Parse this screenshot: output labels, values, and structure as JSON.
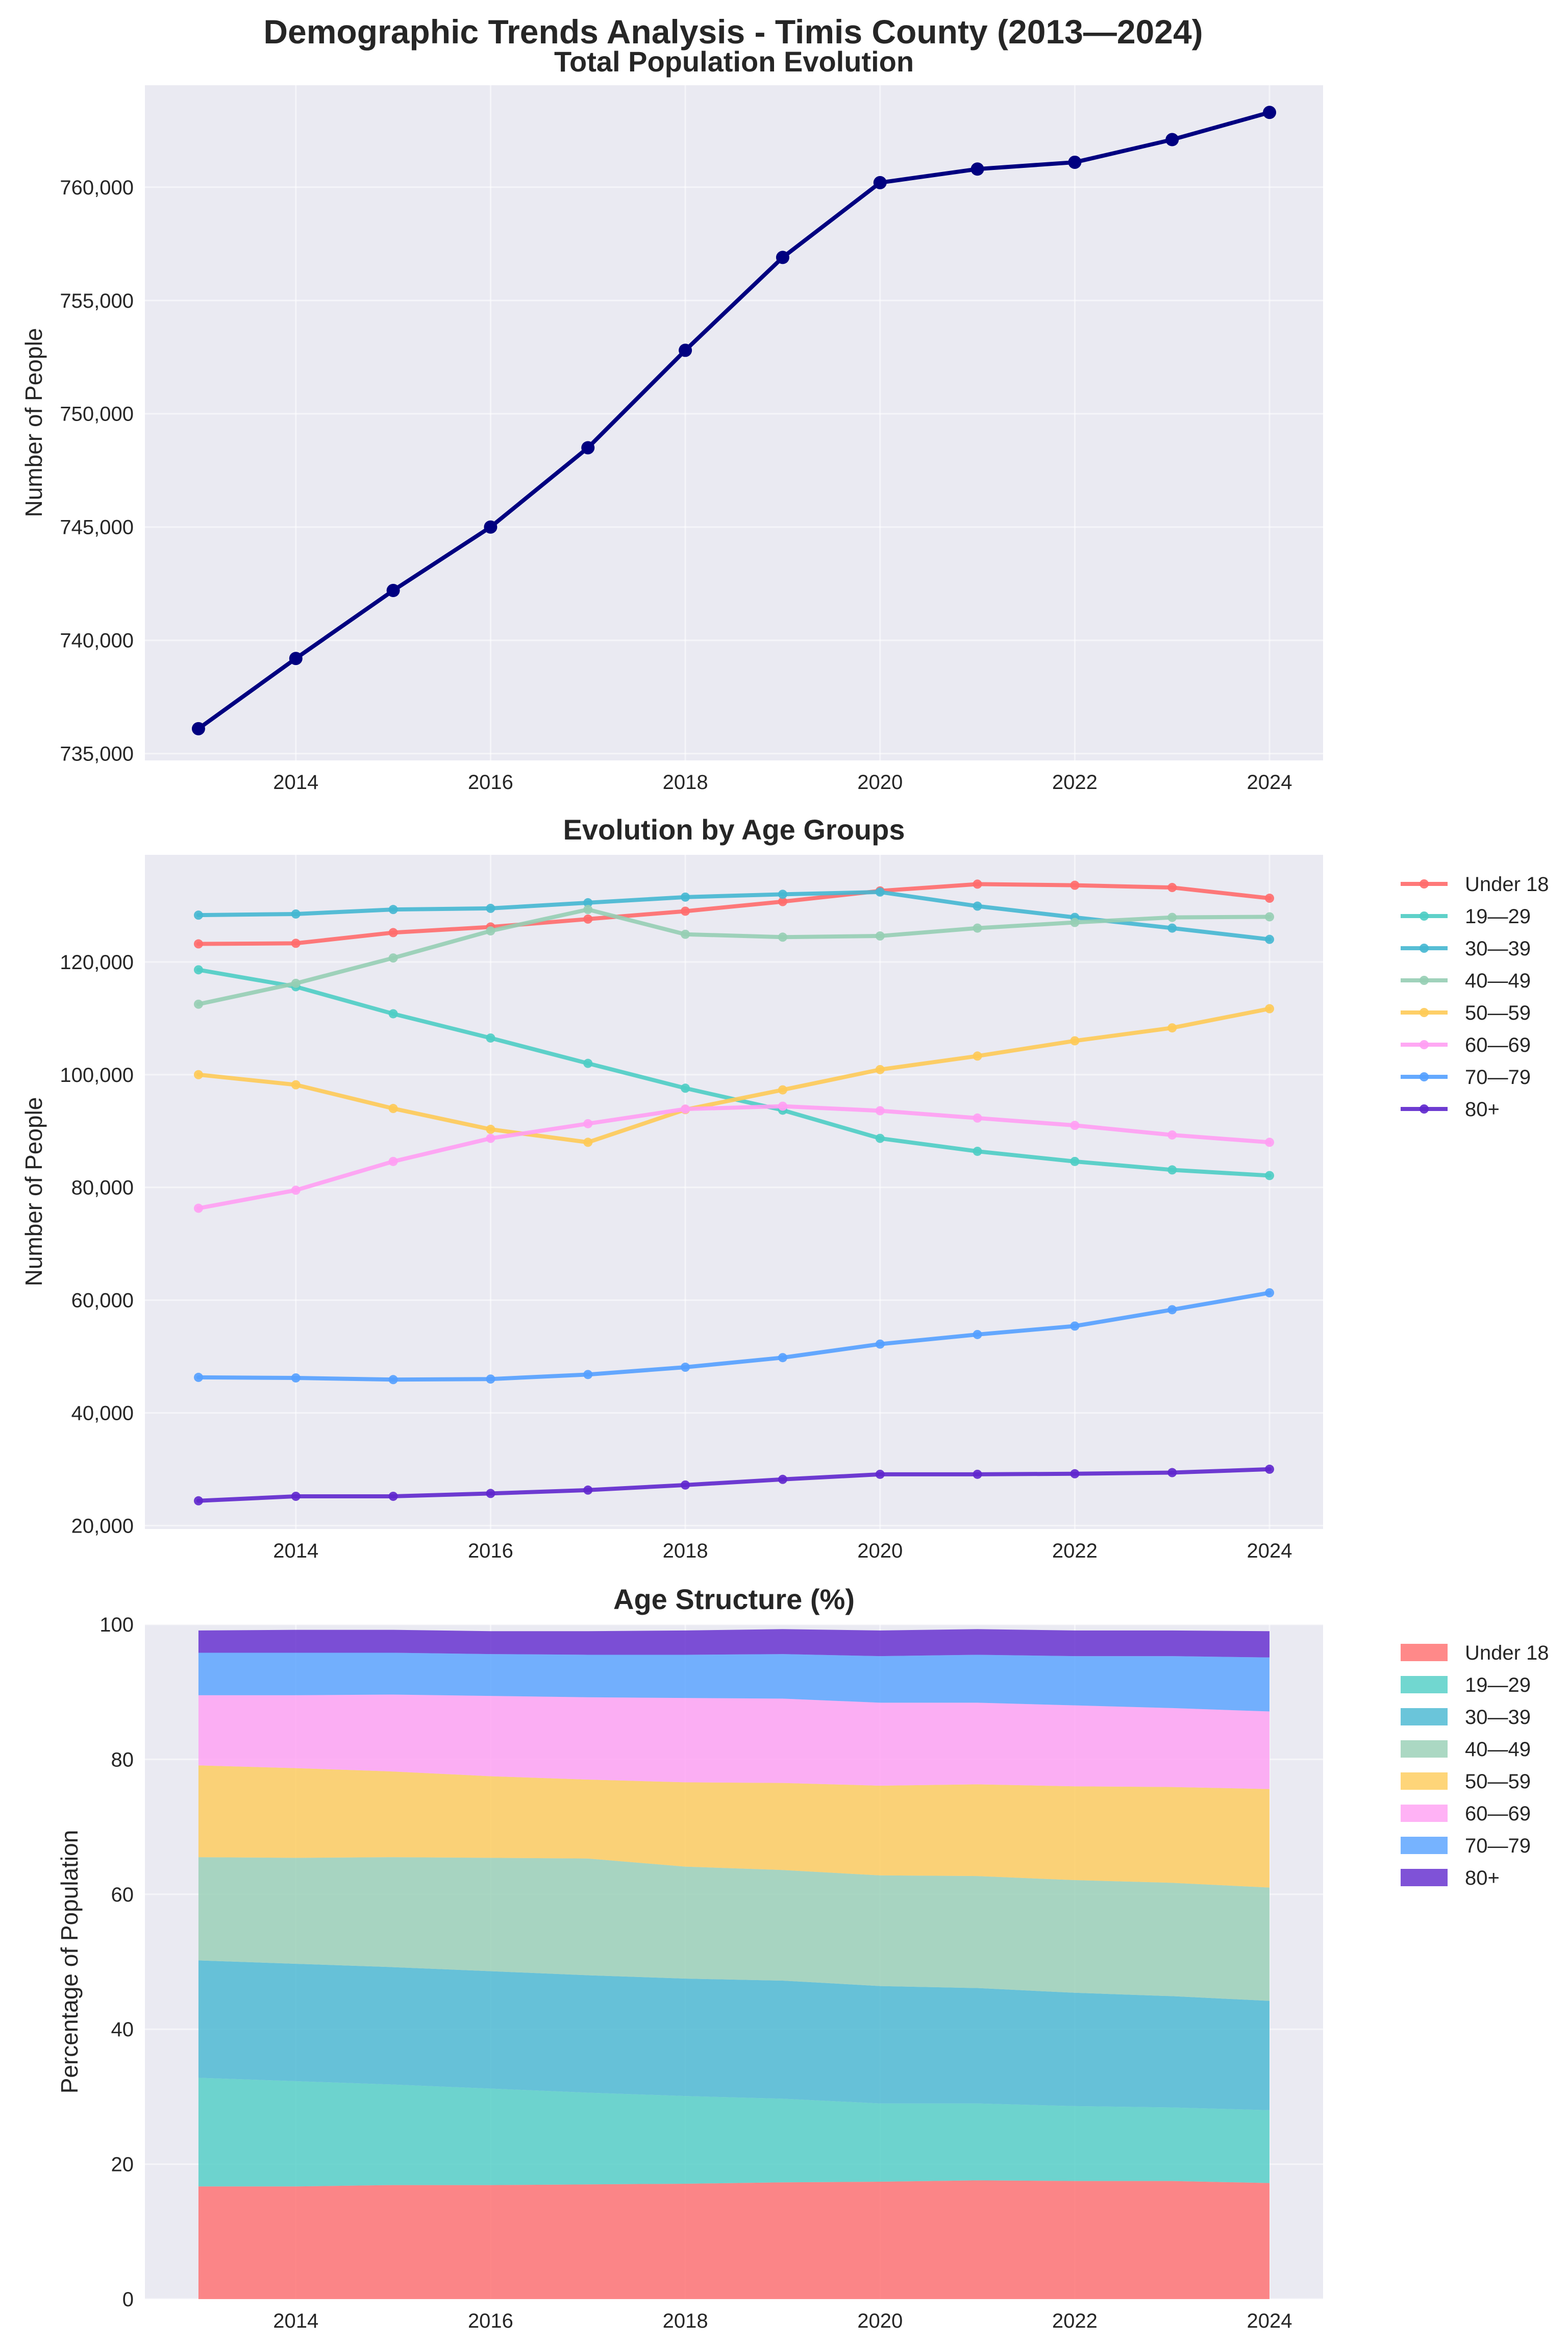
{
  "figure_title": "Demographic Trends Analysis - Timis County (2013—2024)",
  "chart_data": [
    {
      "type": "line",
      "title": "Total Population Evolution",
      "xlabel": "",
      "ylabel": "Number of People",
      "x": [
        2013,
        2014,
        2015,
        2016,
        2017,
        2018,
        2019,
        2020,
        2021,
        2022,
        2023,
        2024
      ],
      "xticks": [
        2014,
        2016,
        2018,
        2020,
        2022,
        2024
      ],
      "xlim": [
        2012.45,
        2024.55
      ],
      "yticks": [
        735000,
        740000,
        745000,
        750000,
        755000,
        760000
      ],
      "ytick_labels": [
        "735,000",
        "740,000",
        "745,000",
        "750,000",
        "755,000",
        "760,000"
      ],
      "ylim": [
        734700,
        764500
      ],
      "grid": true,
      "series": [
        {
          "name": "Total Population",
          "color": "#000080",
          "values": [
            736100,
            739200,
            742200,
            745000,
            748500,
            752800,
            756900,
            760200,
            760800,
            761100,
            762100,
            763300
          ]
        }
      ]
    },
    {
      "type": "line",
      "title": "Evolution by Age Groups",
      "xlabel": "",
      "ylabel": "Number of People",
      "x": [
        2013,
        2014,
        2015,
        2016,
        2017,
        2018,
        2019,
        2020,
        2021,
        2022,
        2023,
        2024
      ],
      "xticks": [
        2014,
        2016,
        2018,
        2020,
        2022,
        2024
      ],
      "xlim": [
        2012.45,
        2024.55
      ],
      "yticks": [
        20000,
        40000,
        60000,
        80000,
        100000,
        120000
      ],
      "ytick_labels": [
        "20,000",
        "40,000",
        "60,000",
        "80,000",
        "100,000",
        "120,000"
      ],
      "ylim": [
        19400,
        139000
      ],
      "grid": true,
      "legend": "outside-right",
      "series": [
        {
          "name": "Under 18",
          "color": "#ff6b6b",
          "values": [
            123200,
            123300,
            125200,
            126200,
            127600,
            129000,
            130700,
            132600,
            133800,
            133600,
            133200,
            131300
          ]
        },
        {
          "name": "19—29",
          "color": "#4ecdc4",
          "values": [
            118600,
            115600,
            110800,
            106500,
            102000,
            97600,
            93700,
            88700,
            86400,
            84600,
            83100,
            82100
          ]
        },
        {
          "name": "30—39",
          "color": "#45b7d1",
          "values": [
            128300,
            128500,
            129300,
            129500,
            130500,
            131500,
            132000,
            132400,
            129900,
            127900,
            126000,
            124000
          ]
        },
        {
          "name": "40—49",
          "color": "#96ceb4",
          "values": [
            112500,
            116200,
            120700,
            125500,
            129300,
            124900,
            124400,
            124600,
            126000,
            127000,
            127900,
            128000
          ]
        },
        {
          "name": "50—59",
          "color": "#feca57",
          "values": [
            100000,
            98200,
            94000,
            90300,
            88000,
            93800,
            97300,
            100900,
            103300,
            106000,
            108300,
            111700
          ]
        },
        {
          "name": "60—69",
          "color": "#ff9ff3",
          "values": [
            76300,
            79500,
            84600,
            88700,
            91300,
            93900,
            94400,
            93600,
            92300,
            91000,
            89300,
            88000
          ]
        },
        {
          "name": "70—79",
          "color": "#54a0ff",
          "values": [
            46300,
            46200,
            45900,
            46000,
            46800,
            48100,
            49800,
            52200,
            53900,
            55400,
            58300,
            61300
          ]
        },
        {
          "name": "80+",
          "color": "#5f27cd",
          "values": [
            24400,
            25200,
            25200,
            25700,
            26300,
            27200,
            28200,
            29100,
            29100,
            29200,
            29400,
            30000
          ]
        }
      ]
    },
    {
      "type": "area",
      "stacked": true,
      "title": "Age Structure (%)",
      "xlabel": "",
      "ylabel": "Percentage of Population",
      "x": [
        2013,
        2014,
        2015,
        2016,
        2017,
        2018,
        2019,
        2020,
        2021,
        2022,
        2023,
        2024
      ],
      "xticks": [
        2014,
        2016,
        2018,
        2020,
        2022,
        2024
      ],
      "xlim": [
        2012.45,
        2024.55
      ],
      "yticks": [
        0,
        20,
        40,
        60,
        80,
        100
      ],
      "ytick_labels": [
        "0",
        "20",
        "40",
        "60",
        "80",
        "100"
      ],
      "ylim": [
        0,
        100
      ],
      "grid": true,
      "legend": "outside-right",
      "series": [
        {
          "name": "Under 18",
          "color": "#ff6b6b",
          "values": [
            16.7,
            16.7,
            16.9,
            16.9,
            17.0,
            17.1,
            17.3,
            17.4,
            17.6,
            17.5,
            17.5,
            17.2
          ]
        },
        {
          "name": "19—29",
          "color": "#4ecdc4",
          "values": [
            16.1,
            15.6,
            14.9,
            14.3,
            13.6,
            13.0,
            12.4,
            11.6,
            11.4,
            11.1,
            10.9,
            10.8
          ]
        },
        {
          "name": "30—39",
          "color": "#45b7d1",
          "values": [
            17.4,
            17.4,
            17.4,
            17.4,
            17.4,
            17.4,
            17.5,
            17.4,
            17.1,
            16.8,
            16.5,
            16.2
          ]
        },
        {
          "name": "40—49",
          "color": "#96ceb4",
          "values": [
            15.3,
            15.7,
            16.3,
            16.8,
            17.3,
            16.6,
            16.4,
            16.4,
            16.6,
            16.7,
            16.8,
            16.8
          ]
        },
        {
          "name": "50—59",
          "color": "#feca57",
          "values": [
            13.6,
            13.3,
            12.7,
            12.1,
            11.7,
            12.5,
            12.9,
            13.3,
            13.6,
            13.9,
            14.2,
            14.6
          ]
        },
        {
          "name": "60—69",
          "color": "#ff9ff3",
          "values": [
            10.4,
            10.8,
            11.4,
            11.9,
            12.2,
            12.5,
            12.5,
            12.3,
            12.1,
            12.0,
            11.7,
            11.5
          ]
        },
        {
          "name": "70—79",
          "color": "#54a0ff",
          "values": [
            6.3,
            6.3,
            6.2,
            6.2,
            6.3,
            6.4,
            6.6,
            6.9,
            7.1,
            7.3,
            7.7,
            8.0
          ]
        },
        {
          "name": "80+",
          "color": "#5f27cd",
          "values": [
            3.3,
            3.4,
            3.4,
            3.4,
            3.5,
            3.6,
            3.7,
            3.8,
            3.8,
            3.8,
            3.8,
            3.9
          ]
        }
      ]
    }
  ]
}
